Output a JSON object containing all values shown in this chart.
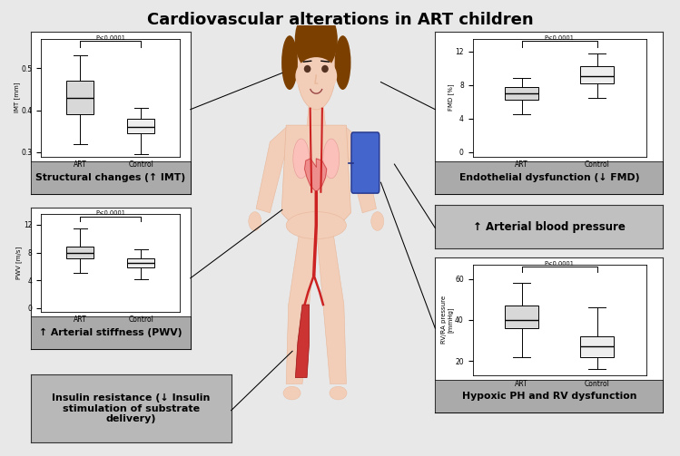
{
  "title": "Cardiovascular alterations in ART children",
  "title_fontsize": 13,
  "bg": "#e8e8e8",
  "white": "#ffffff",
  "gray_label": "#b0b0b0",
  "dark_gray_label": "#999999",
  "imt": {
    "ART": {
      "q1": 0.39,
      "median": 0.43,
      "q3": 0.47,
      "whislo": 0.32,
      "whishi": 0.53
    },
    "Control": {
      "q1": 0.345,
      "median": 0.36,
      "q3": 0.38,
      "whislo": 0.295,
      "whishi": 0.405
    },
    "ylabel": "IMT [mm]",
    "ylim": [
      0.29,
      0.57
    ],
    "yticks": [
      0.3,
      0.4,
      0.5
    ],
    "pval": "P<0.0001",
    "label": "Structural changes (↑ IMT)"
  },
  "fmd": {
    "ART": {
      "q1": 6.2,
      "median": 7.0,
      "q3": 7.8,
      "whislo": 4.5,
      "whishi": 8.8
    },
    "Control": {
      "q1": 8.2,
      "median": 9.0,
      "q3": 10.2,
      "whislo": 6.5,
      "whishi": 11.8
    },
    "ylabel": "FMD [%]",
    "ylim": [
      -0.5,
      13.5
    ],
    "yticks": [
      0,
      4,
      8,
      12
    ],
    "pval": "P<0.0001",
    "label": "Endothelial dysfunction (↓ FMD)"
  },
  "pwv": {
    "ART": {
      "q1": 7.2,
      "median": 8.0,
      "q3": 8.8,
      "whislo": 5.0,
      "whishi": 11.5
    },
    "Control": {
      "q1": 5.8,
      "median": 6.5,
      "q3": 7.1,
      "whislo": 4.2,
      "whishi": 8.5
    },
    "ylabel": "PWV [m/s]",
    "ylim": [
      -0.5,
      13.5
    ],
    "yticks": [
      0,
      4,
      8,
      12
    ],
    "pval": "P<0.0001",
    "label": "↑ Arterial stiffness (PWV)"
  },
  "rvra": {
    "ART": {
      "q1": 36,
      "median": 40,
      "q3": 47,
      "whislo": 22,
      "whishi": 58
    },
    "Control": {
      "q1": 22,
      "median": 27,
      "q3": 32,
      "whislo": 16,
      "whishi": 46
    },
    "ylabel": "RV/RA pressure\n[mmHg]",
    "ylim": [
      13,
      67
    ],
    "yticks": [
      20,
      40,
      60
    ],
    "pval": "P<0.0001",
    "label": "Hypoxic PH and RV dysfunction"
  },
  "bp_label": "↑ Arterial blood pressure",
  "insulin_label": "Insulin resistance (↓ Insulin\nstimulation of substrate\ndelivery)"
}
